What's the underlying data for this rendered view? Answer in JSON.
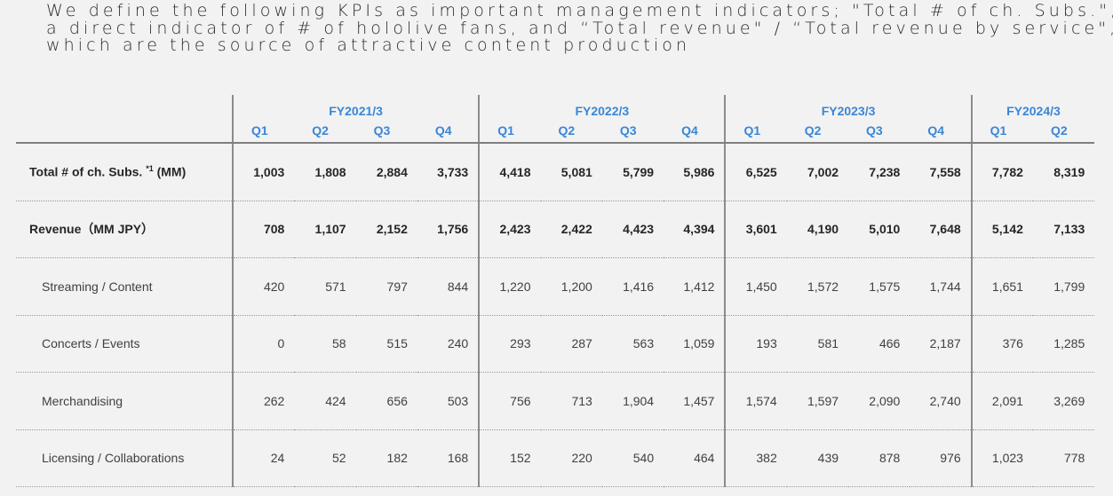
{
  "title_lines": [
    "We define the following KPIs as important management indicators; \"Total # of ch. Subs.\",",
    "a direct indicator of # of hololive fans, and “Total revenue\" / “Total revenue by service\",",
    "which are the source of attractive content production"
  ],
  "table": {
    "fiscal_years": [
      "FY2021/3",
      "FY2022/3",
      "FY2023/3",
      "FY2024/3"
    ],
    "quarters": [
      "Q1",
      "Q2",
      "Q3",
      "Q4",
      "Q1",
      "Q2",
      "Q3",
      "Q4",
      "Q1",
      "Q2",
      "Q3",
      "Q4",
      "Q1",
      "Q2"
    ],
    "rows": [
      {
        "label": "Total # of ch. Subs. ",
        "sup": "*1",
        "label_suffix": " (MM)",
        "values": [
          "1,003",
          "1,808",
          "2,884",
          "3,733",
          "4,418",
          "5,081",
          "5,799",
          "5,986",
          "6,525",
          "7,002",
          "7,238",
          "7,558",
          "7,782",
          "8,319"
        ]
      },
      {
        "label": "Revenue（MM JPY）",
        "values": [
          "708",
          "1,107",
          "2,152",
          "1,756",
          "2,423",
          "2,422",
          "4,423",
          "4,394",
          "3,601",
          "4,190",
          "5,010",
          "7,648",
          "5,142",
          "7,133"
        ]
      },
      {
        "label": "Streaming / Content",
        "values": [
          "420",
          "571",
          "797",
          "844",
          "1,220",
          "1,200",
          "1,416",
          "1,412",
          "1,450",
          "1,572",
          "1,575",
          "1,744",
          "1,651",
          "1,799"
        ]
      },
      {
        "label": "Concerts / Events",
        "values": [
          "0",
          "58",
          "515",
          "240",
          "293",
          "287",
          "563",
          "1,059",
          "193",
          "581",
          "466",
          "2,187",
          "376",
          "1,285"
        ]
      },
      {
        "label": "Merchandising",
        "values": [
          "262",
          "424",
          "656",
          "503",
          "756",
          "713",
          "1,904",
          "1,457",
          "1,574",
          "1,597",
          "2,090",
          "2,740",
          "2,091",
          "3,269"
        ]
      },
      {
        "label": "Licensing / Collaborations",
        "values": [
          "24",
          "52",
          "182",
          "168",
          "152",
          "220",
          "540",
          "464",
          "382",
          "439",
          "878",
          "976",
          "1,023",
          "778"
        ]
      }
    ]
  }
}
